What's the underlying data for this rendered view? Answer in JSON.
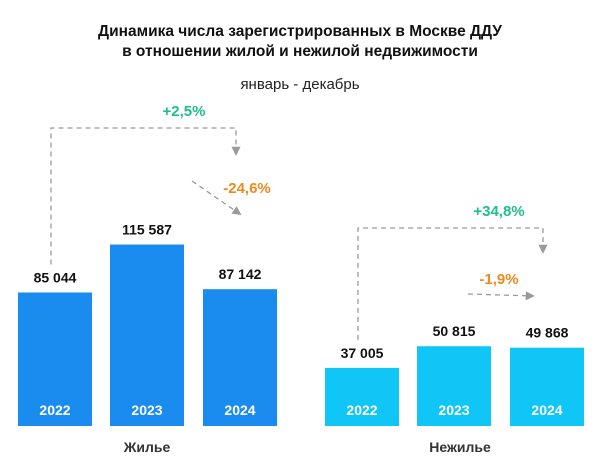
{
  "title_line1": "Динамика числа зарегистрированных в Москве ДДУ",
  "title_line2": "в отношении жилой и нежилой недвижимости",
  "subtitle": "январь - декабрь",
  "chart_data": {
    "type": "bar",
    "groups": [
      {
        "name": "Жилье",
        "color": "#1a8cf0",
        "categories": [
          "2022",
          "2023",
          "2024"
        ],
        "values": [
          85044,
          115587,
          87142
        ],
        "labels": [
          "85 044",
          "115 587",
          "87 142"
        ],
        "changes": [
          {
            "from": 0,
            "to": 2,
            "label": "+2,5%",
            "color": "#1fbe8f"
          },
          {
            "from": 1,
            "to": 2,
            "label": "-24,6%",
            "color": "#ee8a1e"
          }
        ]
      },
      {
        "name": "Нежилье",
        "color": "#0fc6f7",
        "categories": [
          "2022",
          "2023",
          "2024"
        ],
        "values": [
          37005,
          50815,
          49868
        ],
        "labels": [
          "37 005",
          "50 815",
          "49 868"
        ],
        "changes": [
          {
            "from": 0,
            "to": 2,
            "label": "+34,8%",
            "color": "#1fbe8f"
          },
          {
            "from": 1,
            "to": 2,
            "label": "-1,9%",
            "color": "#ee8a1e"
          }
        ]
      }
    ]
  }
}
